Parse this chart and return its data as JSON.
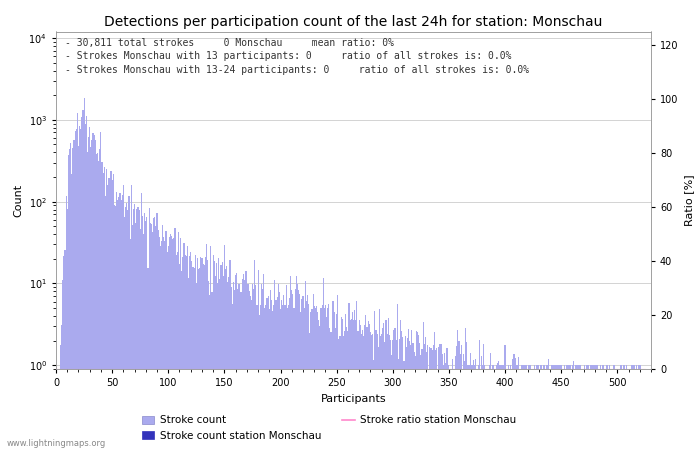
{
  "title": "Detections per participation count of the last 24h for station: Monschau",
  "xlabel": "Participants",
  "ylabel_left": "Count",
  "ylabel_right": "Ratio [%]",
  "annotation_lines": [
    "30,811 total strokes     0 Monschau     mean ratio: 0%",
    "Strokes Monschau with 13 participants: 0     ratio of all strokes is: 0.0%",
    "Strokes Monschau with 13-24 participants: 0     ratio of all strokes is: 0.0%"
  ],
  "watermark": "www.lightningmaps.org",
  "bar_color_light": "#aaaaee",
  "bar_color_dark": "#3333bb",
  "ratio_line_color": "#ff88cc",
  "background_color": "#ffffff",
  "grid_color": "#cccccc",
  "xlim": [
    0,
    530
  ],
  "ylim_right": [
    0,
    125
  ],
  "right_yticks": [
    0,
    20,
    40,
    60,
    80,
    100,
    120
  ],
  "legend_labels": [
    "Stroke count",
    "Stroke count station Monschau",
    "Stroke ratio station Monschau"
  ],
  "title_fontsize": 10,
  "label_fontsize": 8,
  "annotation_fontsize": 7,
  "tick_fontsize": 7
}
